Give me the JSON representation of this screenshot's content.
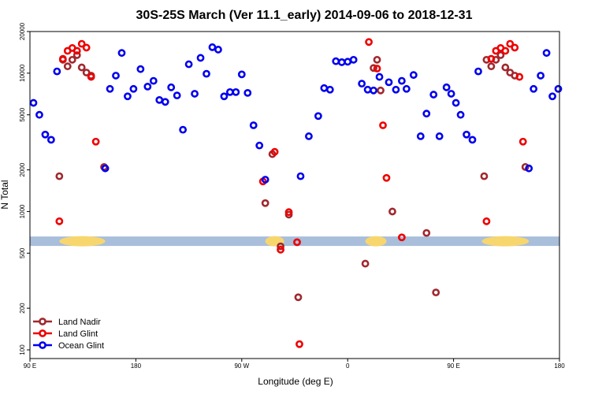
{
  "chart_data": {
    "type": "scatter",
    "title": "30S-25S March (Ver 11.1_early)   2014-09-06 to 2018-12-31",
    "xlabel": "Longitude (deg E)",
    "ylabel": "N Total",
    "y_scale": "log",
    "ylim": [
      90,
      20000
    ],
    "xlim": [
      90,
      540
    ],
    "x_ticks": [
      {
        "value": 90,
        "label": "90 E"
      },
      {
        "value": 180,
        "label": "180"
      },
      {
        "value": 270,
        "label": "90 W"
      },
      {
        "value": 360,
        "label": "0"
      },
      {
        "value": 450,
        "label": "90 E"
      },
      {
        "value": 540,
        "label": "180"
      }
    ],
    "y_ticks": [
      {
        "value": 100,
        "label": "100"
      },
      {
        "value": 200,
        "label": "200"
      },
      {
        "value": 500,
        "label": "500"
      },
      {
        "value": 1000,
        "label": "1000"
      },
      {
        "value": 2000,
        "label": "2000"
      },
      {
        "value": 5000,
        "label": "5000"
      },
      {
        "value": 10000,
        "label": "10000"
      },
      {
        "value": 20000,
        "label": "20000"
      }
    ],
    "map_strip": {
      "y_value": 610,
      "base_color": "#a8bedb",
      "land_color": "#f8d66e",
      "land_segments": [
        [
          115,
          154
        ],
        [
          290,
          306
        ],
        [
          375,
          393
        ],
        [
          474,
          514
        ]
      ]
    },
    "series": [
      {
        "name": "Land Nadir",
        "color": "#a0282d",
        "points": [
          [
            115,
            1800
          ],
          [
            118,
            12500
          ],
          [
            122,
            11200
          ],
          [
            126,
            12500
          ],
          [
            130,
            13500
          ],
          [
            134,
            11000
          ],
          [
            138,
            10100
          ],
          [
            142,
            9600
          ],
          [
            153,
            2100
          ],
          [
            290,
            1150
          ],
          [
            296,
            2600
          ],
          [
            303,
            560
          ],
          [
            310,
            950
          ],
          [
            318,
            240
          ],
          [
            375,
            420
          ],
          [
            382,
            10900
          ],
          [
            385,
            12500
          ],
          [
            388,
            7500
          ],
          [
            398,
            1000
          ],
          [
            427,
            700
          ],
          [
            435,
            260
          ],
          [
            476,
            1800
          ],
          [
            478,
            12500
          ],
          [
            482,
            11200
          ],
          [
            486,
            12500
          ],
          [
            490,
            13500
          ],
          [
            494,
            11000
          ],
          [
            498,
            10100
          ],
          [
            502,
            9600
          ],
          [
            511,
            2100
          ]
        ]
      },
      {
        "name": "Land Glint",
        "color": "#ee0000",
        "points": [
          [
            115,
            850
          ],
          [
            118,
            12700
          ],
          [
            122,
            14500
          ],
          [
            126,
            15200
          ],
          [
            130,
            14500
          ],
          [
            134,
            16300
          ],
          [
            138,
            15300
          ],
          [
            142,
            9400
          ],
          [
            146,
            3200
          ],
          [
            288,
            1650
          ],
          [
            298,
            2700
          ],
          [
            303,
            530
          ],
          [
            310,
            990
          ],
          [
            317,
            600
          ],
          [
            319,
            110
          ],
          [
            378,
            16800
          ],
          [
            385,
            10800
          ],
          [
            390,
            4200
          ],
          [
            393,
            1750
          ],
          [
            406,
            650
          ],
          [
            478,
            850
          ],
          [
            482,
            12700
          ],
          [
            486,
            14500
          ],
          [
            490,
            15200
          ],
          [
            494,
            14500
          ],
          [
            498,
            16300
          ],
          [
            502,
            15300
          ],
          [
            506,
            9400
          ],
          [
            509,
            3200
          ]
        ]
      },
      {
        "name": "Ocean Glint",
        "color": "#0000ee",
        "points": [
          [
            93,
            6100
          ],
          [
            98,
            5000
          ],
          [
            103,
            3600
          ],
          [
            108,
            3300
          ],
          [
            113,
            10300
          ],
          [
            154,
            2050
          ],
          [
            158,
            7700
          ],
          [
            163,
            9600
          ],
          [
            168,
            14000
          ],
          [
            173,
            6800
          ],
          [
            178,
            7700
          ],
          [
            184,
            10700
          ],
          [
            190,
            8000
          ],
          [
            195,
            8800
          ],
          [
            200,
            6400
          ],
          [
            205,
            6200
          ],
          [
            210,
            7900
          ],
          [
            215,
            6900
          ],
          [
            220,
            3900
          ],
          [
            225,
            11600
          ],
          [
            230,
            7100
          ],
          [
            235,
            12900
          ],
          [
            240,
            9900
          ],
          [
            245,
            15400
          ],
          [
            250,
            14800
          ],
          [
            255,
            6800
          ],
          [
            260,
            7300
          ],
          [
            265,
            7300
          ],
          [
            270,
            9800
          ],
          [
            275,
            7200
          ],
          [
            280,
            4200
          ],
          [
            285,
            3000
          ],
          [
            290,
            1700
          ],
          [
            320,
            1800
          ],
          [
            327,
            3500
          ],
          [
            335,
            4900
          ],
          [
            340,
            7800
          ],
          [
            345,
            7600
          ],
          [
            350,
            12200
          ],
          [
            355,
            12000
          ],
          [
            360,
            12100
          ],
          [
            365,
            12500
          ],
          [
            372,
            8400
          ],
          [
            377,
            7600
          ],
          [
            382,
            7500
          ],
          [
            387,
            9400
          ],
          [
            395,
            8600
          ],
          [
            401,
            7600
          ],
          [
            406,
            8800
          ],
          [
            410,
            7700
          ],
          [
            416,
            9700
          ],
          [
            422,
            3500
          ],
          [
            427,
            5100
          ],
          [
            433,
            7000
          ],
          [
            438,
            3500
          ],
          [
            444,
            7900
          ],
          [
            448,
            7100
          ],
          [
            452,
            6100
          ],
          [
            456,
            5000
          ],
          [
            461,
            3600
          ],
          [
            466,
            3300
          ],
          [
            471,
            10300
          ],
          [
            514,
            2050
          ],
          [
            518,
            7700
          ],
          [
            524,
            9600
          ],
          [
            529,
            14000
          ],
          [
            534,
            6800
          ],
          [
            539,
            7700
          ]
        ]
      }
    ]
  }
}
